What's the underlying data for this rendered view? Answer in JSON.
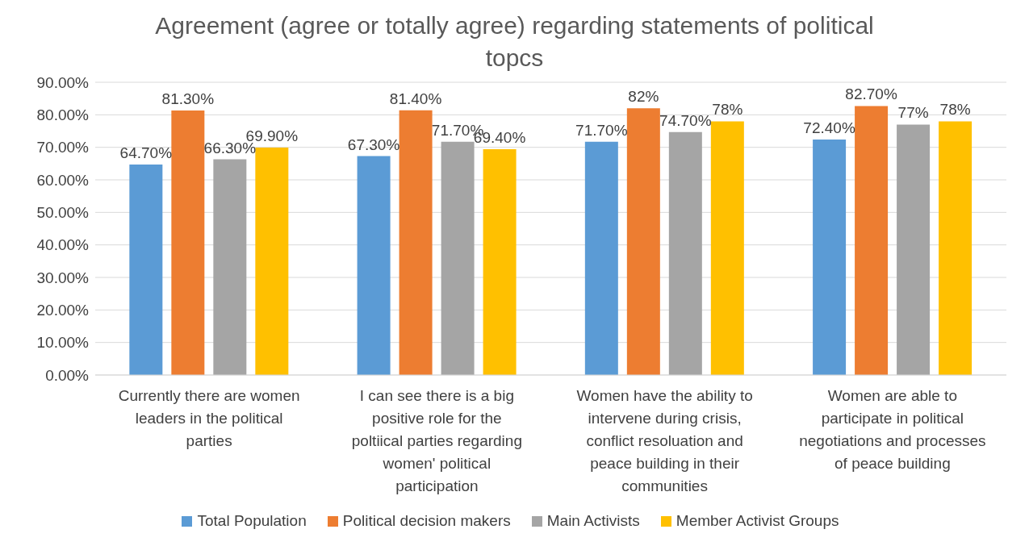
{
  "chart_data": {
    "type": "bar",
    "title": "Agreement (agree or totally agree) regarding statements of political topcs",
    "categories": [
      "Currently there are women leaders in the political parties",
      "I can see there is a big positive role for the poltiical parties regarding women' political participation",
      "Women have the ability to intervene during crisis, conflict resoluation and peace building in their communities",
      "Women are able to participate in political negotiations and processes of peace building"
    ],
    "series": [
      {
        "name": "Total Population",
        "color": "#5b9bd5",
        "values": [
          64.7,
          67.3,
          71.7,
          72.4
        ],
        "value_labels": [
          "64.70%",
          "67.30%",
          "71.70%",
          "72.40%"
        ]
      },
      {
        "name": "Political decision makers",
        "color": "#ed7d31",
        "values": [
          81.3,
          81.4,
          82,
          82.7
        ],
        "value_labels": [
          "81.30%",
          "81.40%",
          "82%",
          "82.70%"
        ]
      },
      {
        "name": "Main Activists",
        "color": "#a5a5a5",
        "values": [
          66.3,
          71.7,
          74.7,
          77
        ],
        "value_labels": [
          "66.30%",
          "71.70%",
          "74.70%",
          "77%"
        ]
      },
      {
        "name": "Member Activist Groups",
        "color": "#ffc000",
        "values": [
          69.9,
          69.4,
          78,
          78
        ],
        "value_labels": [
          "69.90%",
          "69.40%",
          "78%",
          "78%"
        ]
      }
    ],
    "ylim": [
      0,
      90
    ],
    "yticks": [
      {
        "value": 0,
        "label": "0.00%"
      },
      {
        "value": 10,
        "label": "10.00%"
      },
      {
        "value": 20,
        "label": "20.00%"
      },
      {
        "value": 30,
        "label": "30.00%"
      },
      {
        "value": 40,
        "label": "40.00%"
      },
      {
        "value": 50,
        "label": "50.00%"
      },
      {
        "value": 60,
        "label": "60.00%"
      },
      {
        "value": 70,
        "label": "70.00%"
      },
      {
        "value": 80,
        "label": "80.00%"
      },
      {
        "value": 90,
        "label": "90.00%"
      }
    ],
    "grid": "y",
    "legend": "bottom"
  }
}
